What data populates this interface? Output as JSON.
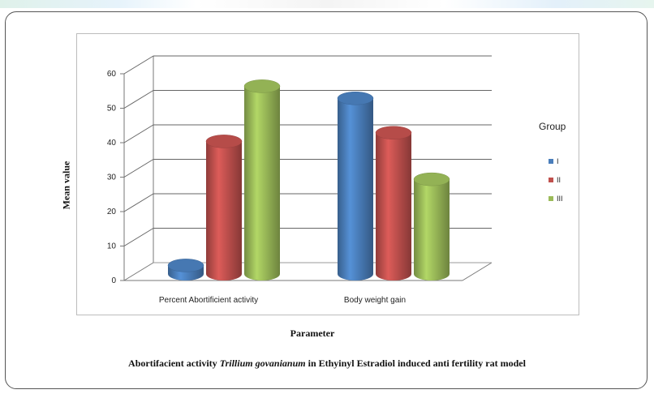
{
  "chart_data": {
    "type": "bar",
    "style": "3d-cylinder",
    "categories": [
      "Percent Abortificient activity",
      "Body weight gain"
    ],
    "series": [
      {
        "name": "I",
        "color": "#4a7ebb",
        "values": [
          2.5,
          51
        ]
      },
      {
        "name": "II",
        "color": "#c0504d",
        "values": [
          38.5,
          41
        ]
      },
      {
        "name": "III",
        "color": "#9bbb59",
        "values": [
          54.5,
          27.5
        ]
      }
    ],
    "legend_title": "Group",
    "legend_position": "right",
    "yticks": [
      0,
      10,
      20,
      30,
      40,
      50,
      60
    ],
    "ylim": [
      0,
      60
    ],
    "grid": true,
    "xlabel": "Parameter",
    "ylabel": "Mean value"
  },
  "caption": {
    "before": "Abortifacient activity ",
    "italic": "Trillium govanianum",
    "after": " in Ethyinyl Estradiol induced anti fertility rat model"
  }
}
